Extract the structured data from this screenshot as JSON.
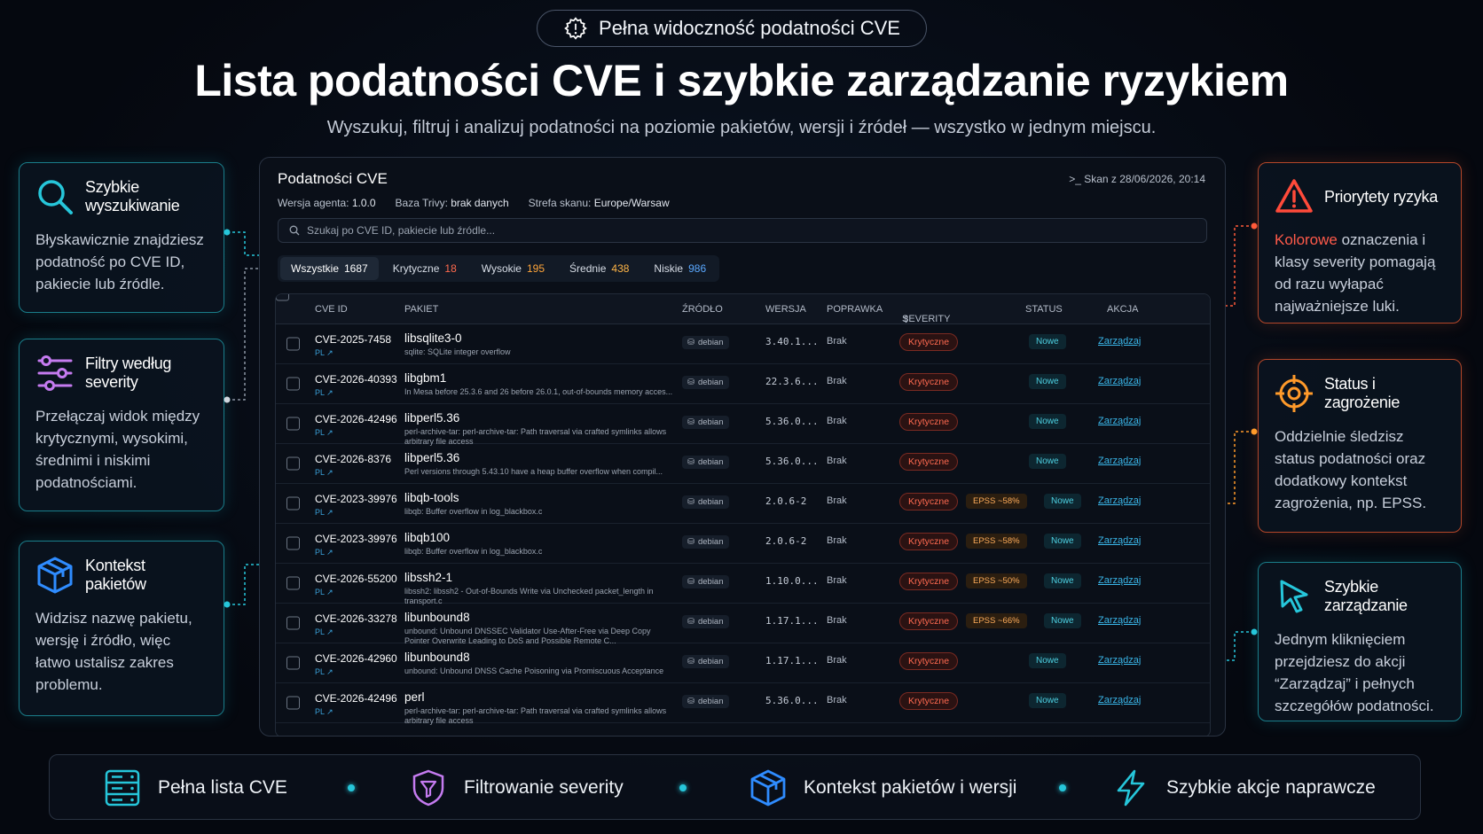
{
  "header": {
    "badge": "Pełna widoczność podatności CVE",
    "title": "Lista podatności CVE i szybkie zarządzanie ryzykiem",
    "subtitle": "Wyszukuj, filtruj i analizuj podatności na poziomie pakietów, wersji i źródeł — wszystko w jednym miejscu."
  },
  "left_cards": [
    {
      "title": "Szybkie wyszukiwanie",
      "body": "Błyskawicznie znajdziesz podatność po CVE ID, pakiecie lub źródle.",
      "icon": "search-icon"
    },
    {
      "title": "Filtry według severity",
      "body": "Przełączaj widok między krytycznymi, wysokimi, średnimi i niskimi podatnościami.",
      "icon": "sliders-icon"
    },
    {
      "title": "Kontekst pakietów",
      "body": "Widzisz nazwę pakietu, wersję i źródło, więc łatwo ustalisz zakres problemu.",
      "icon": "package-icon"
    }
  ],
  "right_cards": [
    {
      "title": "Priorytety ryzyka",
      "highlight": "Kolorowe",
      "body": " oznaczenia i klasy severity pomagają od razu wyłapać najważniejsze luki.",
      "icon": "warning-icon"
    },
    {
      "title": "Status i zagrożenie",
      "body": "Oddzielnie śledzisz status podatności oraz dodatkowy kontekst zagrożenia, np. EPSS.",
      "icon": "crosshair-icon"
    },
    {
      "title": "Szybkie zarządzanie",
      "body": "Jednym kliknięciem przejdziesz do akcji “Zarządzaj” i pełnych szczegółów podatności.",
      "icon": "cursor-icon"
    }
  ],
  "panel": {
    "title": "Podatności CVE",
    "scan": "Skan z 28/06/2026, 20:14",
    "agent_label": "Wersja agenta:",
    "agent_value": "1.0.0",
    "trivy_label": "Baza Trivy:",
    "trivy_value": "brak danych",
    "zone_label": "Strefa skanu:",
    "zone_value": "Europe/Warsaw",
    "search_placeholder": "Szukaj po CVE ID, pakiecie lub źródle...",
    "tabs": [
      {
        "label": "Wszystkie",
        "count": "1687"
      },
      {
        "label": "Krytyczne",
        "count": "18"
      },
      {
        "label": "Wysokie",
        "count": "195"
      },
      {
        "label": "Średnie",
        "count": "438"
      },
      {
        "label": "Niskie",
        "count": "986"
      }
    ],
    "columns": {
      "cve": "CVE ID",
      "pkg": "PAKIET",
      "src": "ŹRÓDŁO",
      "ver": "WERSJA",
      "fix": "POPRAWKA",
      "sev": "SEVERITY",
      "status": "STATUS",
      "action": "AKCJA"
    },
    "rows": [
      {
        "cve": "CVE-2025-7458",
        "pl": "PL ↗",
        "pkg": "libsqlite3-0",
        "desc": "sqlite: SQLite integer overflow",
        "src": "debian",
        "ver": "3.40.1...",
        "fix": "Brak",
        "sev": "Krytyczne",
        "epss": "",
        "status": "Nowe",
        "action": "Zarządzaj"
      },
      {
        "cve": "CVE-2026-40393",
        "pl": "PL ↗",
        "pkg": "libgbm1",
        "desc": "In Mesa before 25.3.6 and 26 before 26.0.1, out-of-bounds memory acces...",
        "src": "debian",
        "ver": "22.3.6...",
        "fix": "Brak",
        "sev": "Krytyczne",
        "epss": "",
        "status": "Nowe",
        "action": "Zarządzaj"
      },
      {
        "cve": "CVE-2026-42496",
        "pl": "PL ↗",
        "pkg": "libperl5.36",
        "desc": "perl-archive-tar: perl-archive-tar: Path traversal via crafted symlinks allows arbitrary file access",
        "src": "debian",
        "ver": "5.36.0...",
        "fix": "Brak",
        "sev": "Krytyczne",
        "epss": "",
        "status": "Nowe",
        "action": "Zarządzaj"
      },
      {
        "cve": "CVE-2026-8376",
        "pl": "PL ↗",
        "pkg": "libperl5.36",
        "desc": "Perl versions through 5.43.10 have a heap buffer overflow when compil...",
        "src": "debian",
        "ver": "5.36.0...",
        "fix": "Brak",
        "sev": "Krytyczne",
        "epss": "",
        "status": "Nowe",
        "action": "Zarządzaj"
      },
      {
        "cve": "CVE-2023-39976",
        "pl": "PL ↗",
        "pkg": "libqb-tools",
        "desc": "libqb: Buffer overflow in log_blackbox.c",
        "src": "debian",
        "ver": "2.0.6-2",
        "fix": "Brak",
        "sev": "Krytyczne",
        "epss": "EPSS ~58%",
        "status": "Nowe",
        "action": "Zarządzaj"
      },
      {
        "cve": "CVE-2023-39976",
        "pl": "PL ↗",
        "pkg": "libqb100",
        "desc": "libqb: Buffer overflow in log_blackbox.c",
        "src": "debian",
        "ver": "2.0.6-2",
        "fix": "Brak",
        "sev": "Krytyczne",
        "epss": "EPSS ~58%",
        "status": "Nowe",
        "action": "Zarządzaj"
      },
      {
        "cve": "CVE-2026-55200",
        "pl": "PL ↗",
        "pkg": "libssh2-1",
        "desc": "libssh2: libssh2 - Out-of-Bounds Write via Unchecked packet_length in transport.c",
        "src": "debian",
        "ver": "1.10.0...",
        "fix": "Brak",
        "sev": "Krytyczne",
        "epss": "EPSS ~50%",
        "status": "Nowe",
        "action": "Zarządzaj"
      },
      {
        "cve": "CVE-2026-33278",
        "pl": "PL ↗",
        "pkg": "libunbound8",
        "desc": "unbound: Unbound DNSSEC Validator Use-After-Free via Deep Copy Pointer Overwrite Leading to DoS and Possible Remote C...",
        "src": "debian",
        "ver": "1.17.1...",
        "fix": "Brak",
        "sev": "Krytyczne",
        "epss": "EPSS ~66%",
        "status": "Nowe",
        "action": "Zarządzaj"
      },
      {
        "cve": "CVE-2026-42960",
        "pl": "PL ↗",
        "pkg": "libunbound8",
        "desc": "unbound: Unbound DNSS Cache Poisoning via Promiscuous Acceptance",
        "src": "debian",
        "ver": "1.17.1...",
        "fix": "Brak",
        "sev": "Krytyczne",
        "epss": "",
        "status": "Nowe",
        "action": "Zarządzaj"
      },
      {
        "cve": "CVE-2026-42496",
        "pl": "PL ↗",
        "pkg": "perl",
        "desc": "perl-archive-tar: perl-archive-tar: Path traversal via crafted symlinks allows arbitrary file access",
        "src": "debian",
        "ver": "5.36.0...",
        "fix": "Brak",
        "sev": "Krytyczne",
        "epss": "",
        "status": "Nowe",
        "action": "Zarządzaj"
      }
    ]
  },
  "footer": [
    {
      "label": "Pełna lista CVE",
      "icon": "list-icon"
    },
    {
      "label": "Filtrowanie severity",
      "icon": "shield-filter-icon"
    },
    {
      "label": "Kontekst pakietów i wersji",
      "icon": "package-icon"
    },
    {
      "label": "Szybkie akcje naprawcze",
      "icon": "lightning-icon"
    }
  ],
  "colors": {
    "teal": "#26c6da",
    "orange": "#ff7a3a",
    "red": "#ff4a3a",
    "link": "#3ab7ea"
  }
}
